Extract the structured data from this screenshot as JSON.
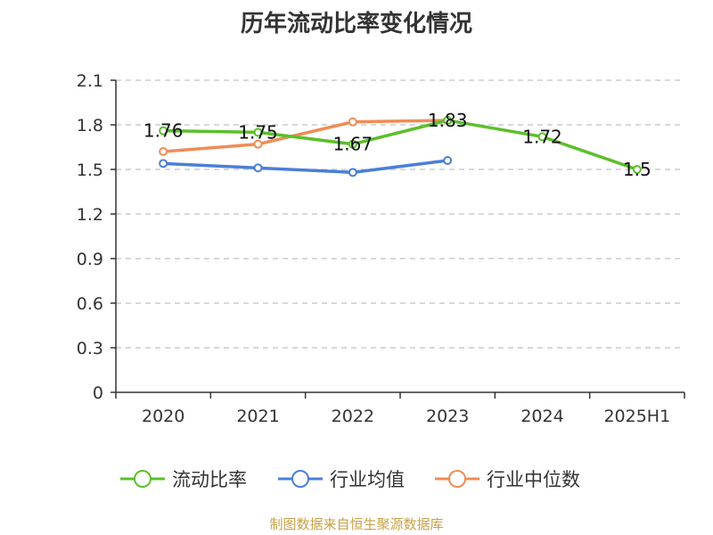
{
  "chart_data": {
    "type": "line",
    "title": "历年流动比率变化情况",
    "categories": [
      "2020",
      "2021",
      "2022",
      "2023",
      "2024",
      "2025H1"
    ],
    "ylim": [
      0,
      2.1
    ],
    "yticks": [
      "0",
      "0.3",
      "0.6",
      "0.9",
      "1.2",
      "1.5",
      "1.8",
      "2.1"
    ],
    "grid": true,
    "legend_position": "bottom",
    "series": [
      {
        "name": "流动比率",
        "color": "#5cbf2a",
        "values": [
          1.76,
          1.75,
          1.67,
          1.83,
          1.72,
          1.5
        ],
        "labels": [
          "1.76",
          "1.75",
          "1.67",
          "1.83",
          "1.72",
          "1.5"
        ]
      },
      {
        "name": "行业均值",
        "color": "#4a7fd8",
        "values": [
          1.54,
          1.51,
          1.48,
          1.56,
          null,
          null
        ]
      },
      {
        "name": "行业中位数",
        "color": "#f08c55",
        "values": [
          1.62,
          1.67,
          1.82,
          1.83,
          null,
          null
        ]
      }
    ]
  },
  "footer": {
    "source": "制图数据来自恒生聚源数据库"
  }
}
